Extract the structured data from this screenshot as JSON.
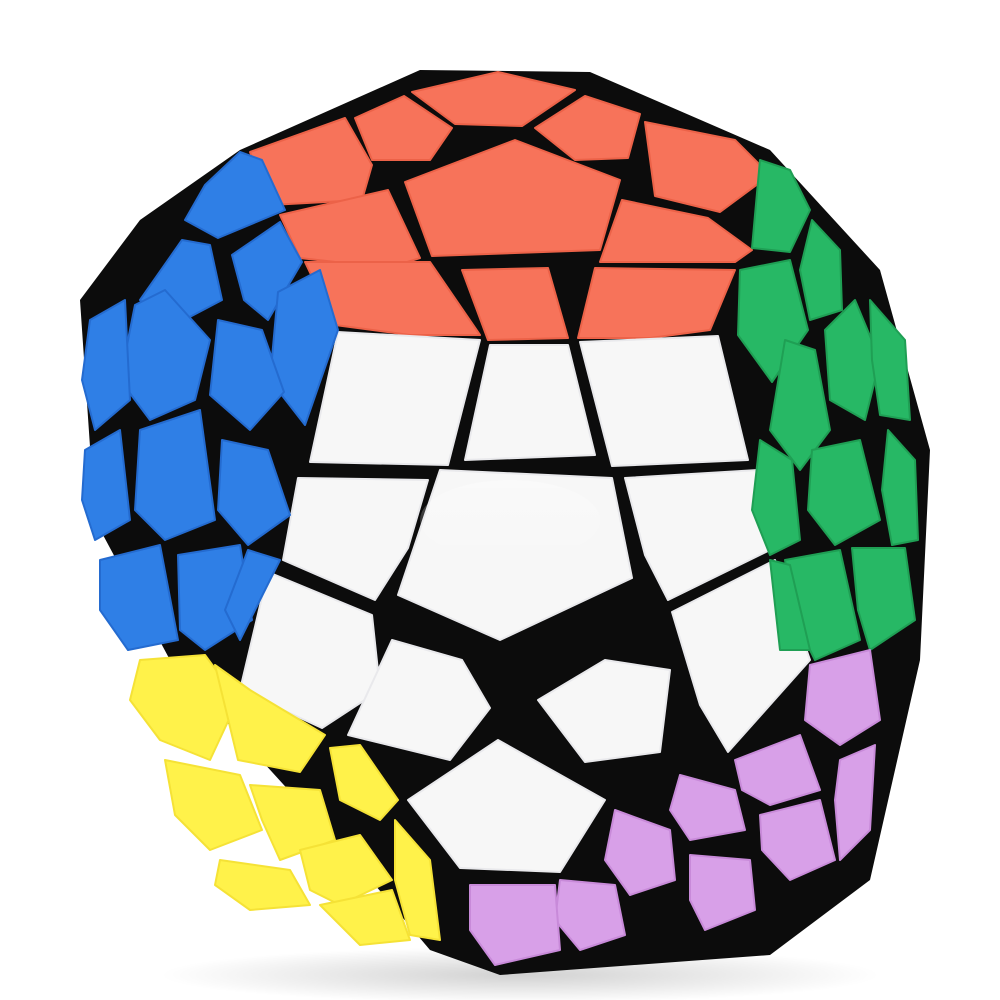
{
  "scene": {
    "subject": "megaminx",
    "background_color": "#ffffff"
  },
  "colors": {
    "body": "#0c0c0c",
    "white": "#f7f7f7",
    "white_shade": "#e9e9ec",
    "red": "#f7735a",
    "red_shade": "#ec6248",
    "blue": "#2f7fe6",
    "blue_shade": "#246bd0",
    "green": "#27b865",
    "green_shade": "#1f9f54",
    "yellow": "#fff24a",
    "yellow_shade": "#f5e236",
    "purple": "#d8a0e8",
    "purple_shade": "#c88ad9"
  },
  "faces": [
    {
      "name": "front",
      "color": "white"
    },
    {
      "name": "top",
      "color": "red"
    },
    {
      "name": "left",
      "color": "blue"
    },
    {
      "name": "right",
      "color": "green"
    },
    {
      "name": "bottom-left",
      "color": "yellow"
    },
    {
      "name": "bottom-right",
      "color": "purple"
    }
  ]
}
